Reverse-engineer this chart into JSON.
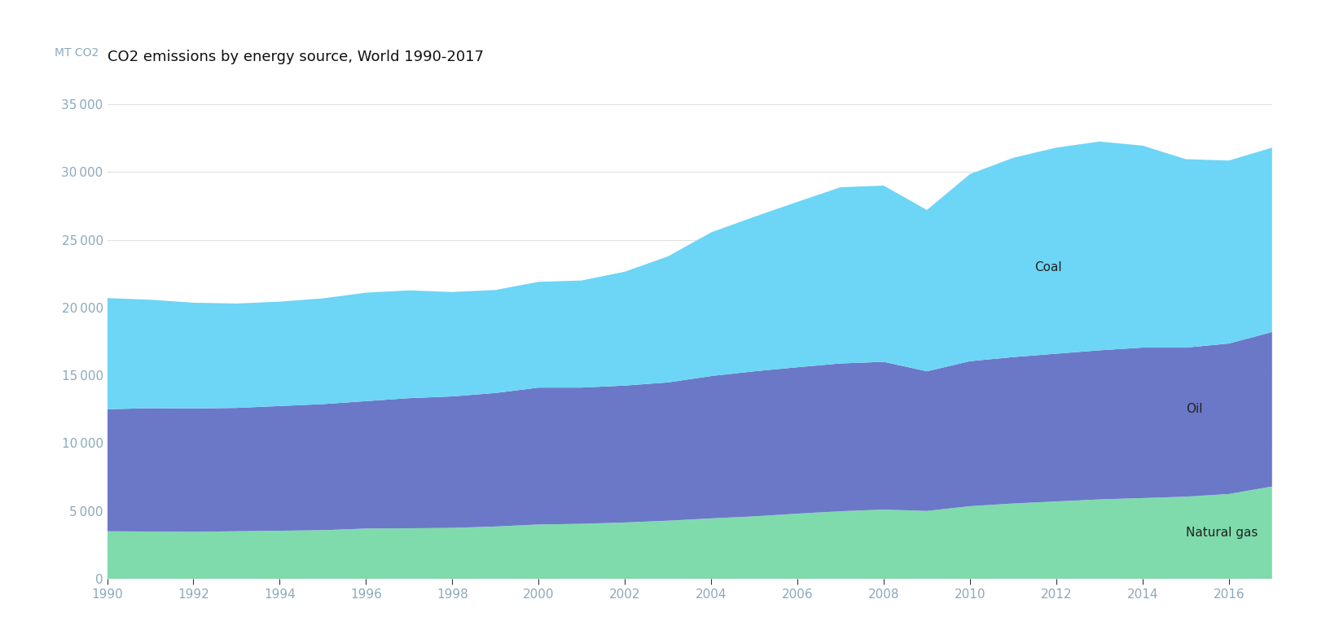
{
  "title": "CO2 emissions by energy source, World 1990-2017",
  "ylabel": "MT CO2",
  "years": [
    1990,
    1991,
    1992,
    1993,
    1994,
    1995,
    1996,
    1997,
    1998,
    1999,
    2000,
    2001,
    2002,
    2003,
    2004,
    2005,
    2006,
    2007,
    2008,
    2009,
    2010,
    2011,
    2012,
    2013,
    2014,
    2015,
    2016,
    2017
  ],
  "natural_gas": [
    3500,
    3480,
    3460,
    3500,
    3540,
    3580,
    3700,
    3720,
    3750,
    3850,
    4000,
    4050,
    4150,
    4280,
    4450,
    4600,
    4800,
    4980,
    5100,
    5000,
    5350,
    5550,
    5700,
    5850,
    5950,
    6050,
    6250,
    6800
  ],
  "oil": [
    9000,
    9100,
    9100,
    9100,
    9200,
    9300,
    9400,
    9600,
    9700,
    9850,
    10100,
    10050,
    10100,
    10200,
    10500,
    10700,
    10800,
    10900,
    10900,
    10300,
    10700,
    10800,
    10900,
    11000,
    11100,
    11000,
    11100,
    11400
  ],
  "coal": [
    8200,
    8000,
    7800,
    7700,
    7700,
    7800,
    8000,
    7950,
    7700,
    7600,
    7800,
    7900,
    8400,
    9300,
    10600,
    11400,
    12200,
    13000,
    13000,
    11900,
    13800,
    14700,
    15200,
    15400,
    14900,
    13900,
    13500,
    13600
  ],
  "color_natural_gas": "#7FDBAC",
  "color_oil": "#6B78C8",
  "color_coal": "#6DD5F5",
  "ylim": [
    0,
    37000
  ],
  "yticks": [
    0,
    5000,
    10000,
    15000,
    20000,
    25000,
    30000,
    35000
  ],
  "xticks": [
    1990,
    1992,
    1994,
    1996,
    1998,
    2000,
    2002,
    2004,
    2006,
    2008,
    2010,
    2012,
    2014,
    2016
  ],
  "label_coal": "Coal",
  "label_oil": "Oil",
  "label_natural_gas": "Natural gas",
  "bg_color": "#ffffff",
  "title_fontsize": 13,
  "axis_label_color": "#8BA9BE",
  "tick_label_color": "#8BA9BE",
  "grid_color": "#e0e0e0"
}
